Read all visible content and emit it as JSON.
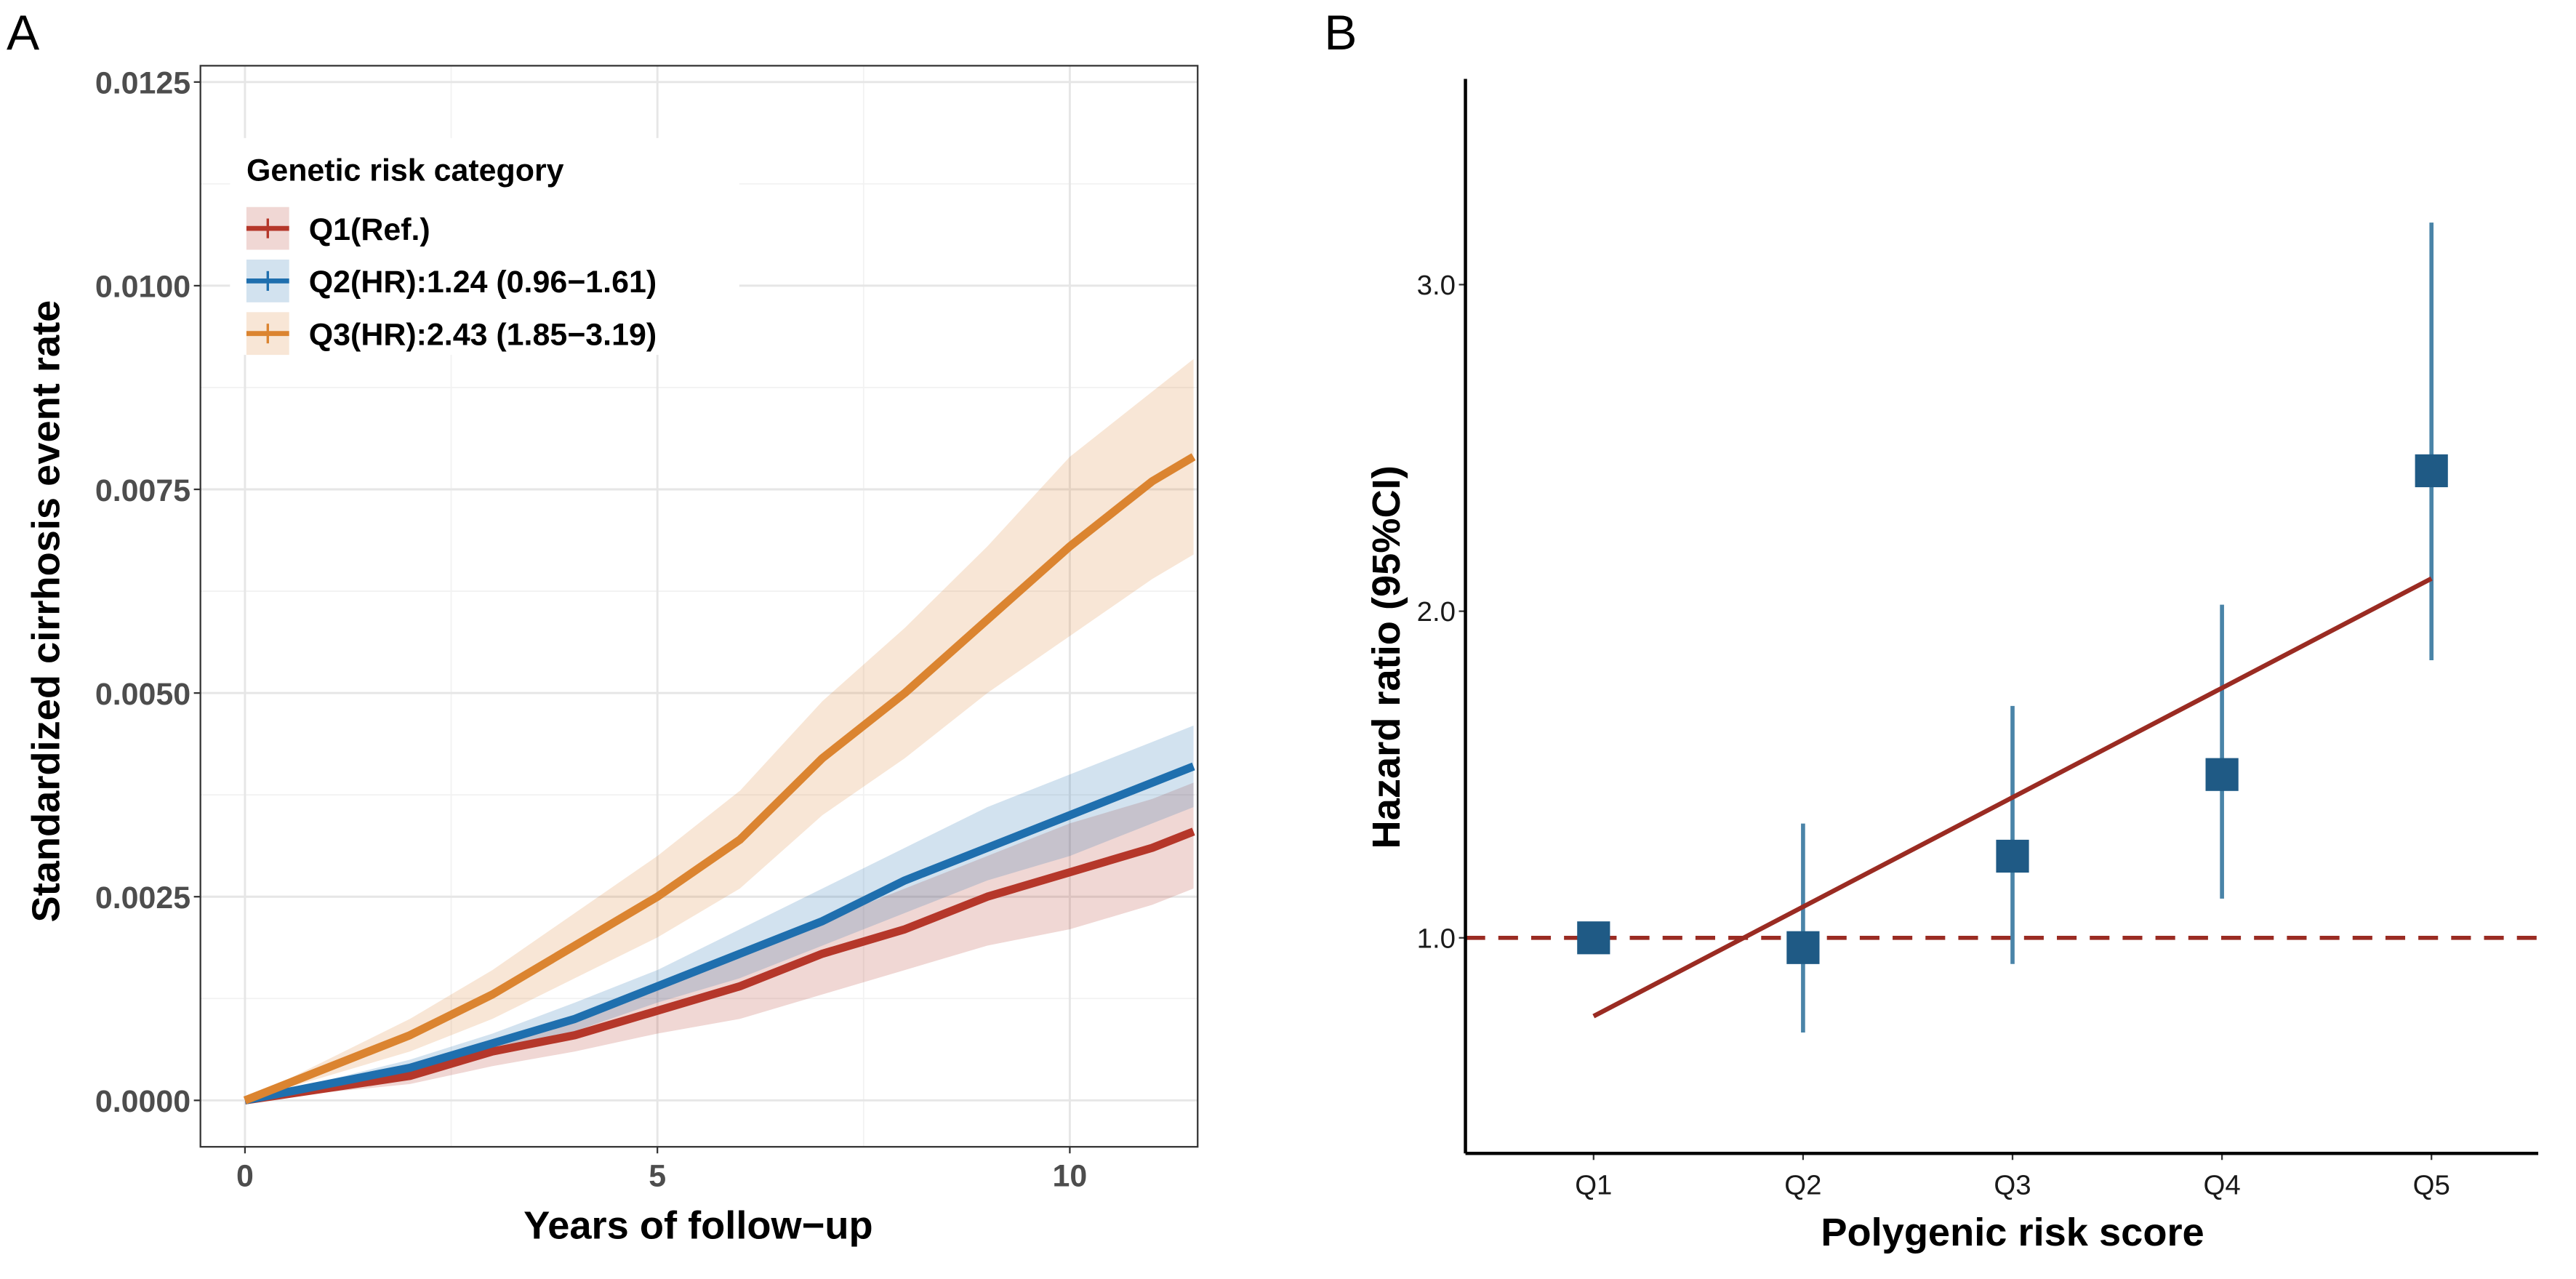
{
  "chart_data": [
    {
      "panel_label": "A",
      "type": "line",
      "xlabel": "Years of follow−up",
      "ylabel": "Standardized cirrhosis event rate",
      "xlim": [
        -0.54,
        11.55
      ],
      "ylim": [
        -0.00057,
        0.0127
      ],
      "xticks": [
        0,
        5,
        10
      ],
      "xtick_labels": [
        "0",
        "5",
        "10"
      ],
      "yticks": [
        0,
        0.0025,
        0.005,
        0.0075,
        0.01,
        0.0125
      ],
      "ytick_labels": [
        "0.0000",
        "0.0025",
        "0.0050",
        "0.0075",
        "0.0100",
        "0.0125"
      ],
      "grid": true,
      "legend": {
        "title": "Genetic risk category",
        "placement": "top-left"
      },
      "x": [
        0,
        1,
        2,
        3,
        4,
        5,
        6,
        7,
        8,
        9,
        10,
        11,
        11.5
      ],
      "series": [
        {
          "name": "Q1(Ref.)",
          "color": "#B5372A",
          "values": [
            0,
            0.00015,
            0.0003,
            0.0006,
            0.0008,
            0.0011,
            0.0014,
            0.0018,
            0.0021,
            0.0025,
            0.0028,
            0.0031,
            0.0033
          ],
          "lower": [
            0,
            0.0001,
            0.0002,
            0.00042,
            0.0006,
            0.00082,
            0.001,
            0.0013,
            0.0016,
            0.0019,
            0.0021,
            0.0024,
            0.0026
          ],
          "upper": [
            0,
            0.0002,
            0.0004,
            0.00075,
            0.001,
            0.0014,
            0.0018,
            0.0022,
            0.0026,
            0.003,
            0.0034,
            0.0037,
            0.0039
          ]
        },
        {
          "name": "Q2(HR):1.24 (0.96−1.61)",
          "color": "#1F6FAE",
          "values": [
            0,
            0.0002,
            0.0004,
            0.0007,
            0.001,
            0.0014,
            0.0018,
            0.0022,
            0.0027,
            0.0031,
            0.0035,
            0.0039,
            0.0041
          ],
          "lower": [
            0,
            0.00015,
            0.0003,
            0.00058,
            0.00085,
            0.0012,
            0.0015,
            0.0019,
            0.0023,
            0.0027,
            0.003,
            0.0034,
            0.0036
          ],
          "upper": [
            0,
            0.00025,
            0.0005,
            0.00082,
            0.0012,
            0.0016,
            0.0021,
            0.0026,
            0.0031,
            0.0036,
            0.004,
            0.0044,
            0.0046
          ]
        },
        {
          "name": "Q3(HR):2.43 (1.85−3.19)",
          "color": "#DB8430",
          "values": [
            0,
            0.0004,
            0.0008,
            0.0013,
            0.0019,
            0.0025,
            0.0032,
            0.0042,
            0.005,
            0.0059,
            0.0068,
            0.0076,
            0.0079
          ],
          "lower": [
            0,
            0.0003,
            0.0006,
            0.001,
            0.0015,
            0.002,
            0.0026,
            0.0035,
            0.0042,
            0.005,
            0.0057,
            0.0064,
            0.0067
          ],
          "upper": [
            0,
            0.0005,
            0.001,
            0.0016,
            0.0023,
            0.003,
            0.0038,
            0.0049,
            0.0058,
            0.0068,
            0.0079,
            0.0087,
            0.0091
          ]
        }
      ]
    },
    {
      "panel_label": "B",
      "type": "scatter",
      "xlabel": "Polygenic risk score",
      "ylabel": "Hazard ratio (95%CI)",
      "categories": [
        "Q1",
        "Q2",
        "Q3",
        "Q4",
        "Q5"
      ],
      "ylim": [
        0.34,
        3.63
      ],
      "yticks": [
        1.0,
        2.0,
        3.0
      ],
      "ytick_labels": [
        "1.0",
        "2.0",
        "3.0"
      ],
      "grid": false,
      "values": [
        1.0,
        0.97,
        1.25,
        1.5,
        2.43
      ],
      "lower": [
        null,
        0.71,
        0.92,
        1.12,
        1.85
      ],
      "upper": [
        null,
        1.35,
        1.71,
        2.02,
        3.19
      ],
      "reference_line": 1.0,
      "trend_line": [
        0.76,
        2.1
      ],
      "colors": {
        "point": "#1F5A85",
        "errorbar": "#4A84A8",
        "trend": "#9A2B22",
        "reference": "#9A2B22"
      }
    }
  ]
}
